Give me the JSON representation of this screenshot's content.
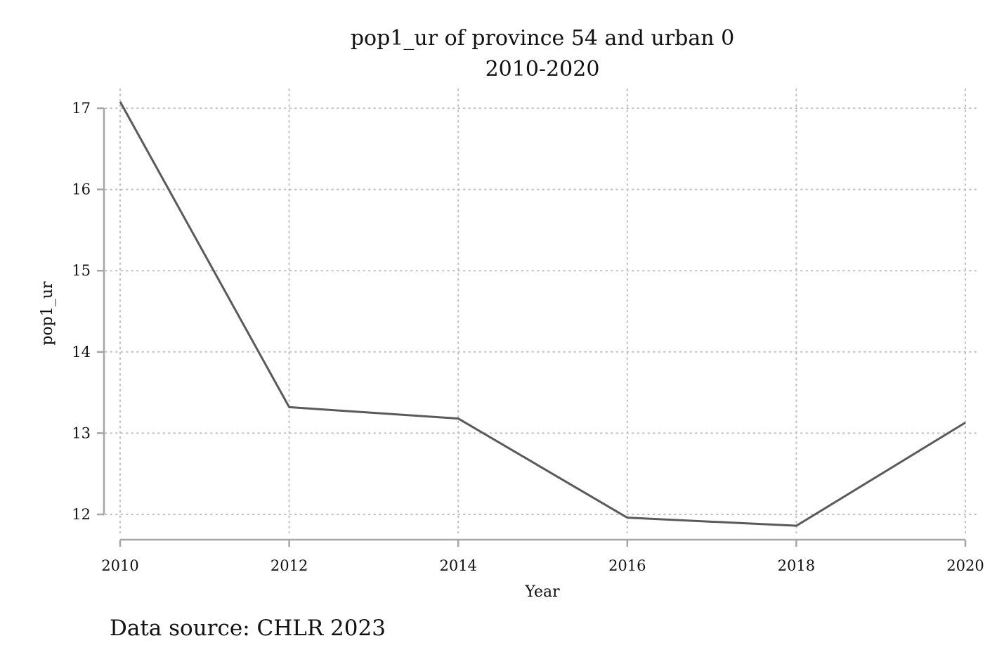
{
  "chart_data": {
    "type": "line",
    "title": "pop1_ur of province 54 and urban 0",
    "subtitle": "2010-2020",
    "xlabel": "Year",
    "ylabel": "pop1_ur",
    "note": "Data source: CHLR 2023",
    "x": [
      2010,
      2012,
      2014,
      2016,
      2018,
      2020
    ],
    "x_ticks": [
      "2010",
      "2012",
      "2014",
      "2016",
      "2018",
      "2020"
    ],
    "y_ticks": [
      "12",
      "13",
      "14",
      "15",
      "16",
      "17"
    ],
    "xlim": [
      2010,
      2020
    ],
    "ylim": [
      12,
      17
    ],
    "grid": true,
    "series": [
      {
        "values": [
          17.08,
          13.32,
          13.18,
          11.96,
          11.86,
          13.13
        ],
        "color": "#5a5a5a"
      }
    ]
  }
}
